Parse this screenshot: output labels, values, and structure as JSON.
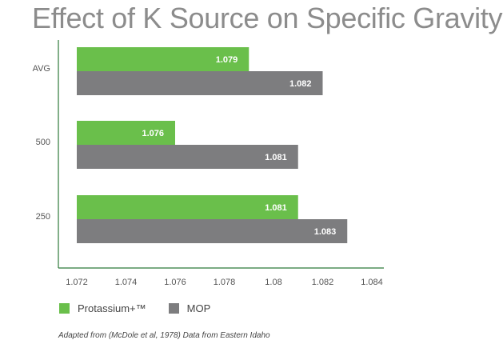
{
  "colors": {
    "protassium": "#6abf4b",
    "mop": "#7d7d7f",
    "axis": "#2f7a3b",
    "title": "#8c8c8c",
    "tick_text": "#555555",
    "bar_label": "#ffffff"
  },
  "chart_data": {
    "type": "bar",
    "orientation": "horizontal",
    "title": "Effect of K Source on Specific Gravity",
    "categories": [
      "AVG",
      "500",
      "250"
    ],
    "series": [
      {
        "name": "Protassium+™",
        "color": "#6abf4b",
        "values": [
          1.079,
          1.076,
          1.081
        ]
      },
      {
        "name": "MOP",
        "color": "#7d7d7f",
        "values": [
          1.082,
          1.081,
          1.083
        ]
      }
    ],
    "value_labels": [
      [
        "1.079",
        "1.076",
        "1.081"
      ],
      [
        "1.082",
        "1.081",
        "1.083"
      ]
    ],
    "xlim": [
      1.072,
      1.084
    ],
    "xticks": [
      "1.072",
      "1.074",
      "1.076",
      "1.078",
      "1.08",
      "1.082",
      "1.084"
    ],
    "xtick_values": [
      1.072,
      1.074,
      1.076,
      1.078,
      1.08,
      1.082,
      1.084
    ],
    "xlabel": "",
    "ylabel": "",
    "grid": false,
    "legend_position": "bottom-left"
  },
  "legend": {
    "items": [
      {
        "label": "Protassium+™",
        "color": "#6abf4b"
      },
      {
        "label": "MOP",
        "color": "#7d7d7f"
      }
    ]
  },
  "footnote": "Adapted from (McDole et al, 1978) Data from Eastern Idaho"
}
